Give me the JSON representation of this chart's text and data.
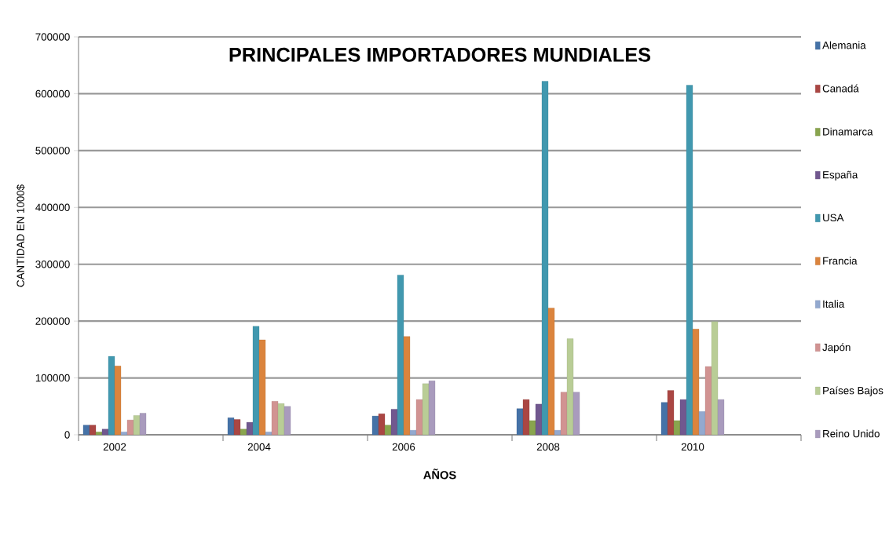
{
  "chart_data": {
    "type": "bar",
    "title": "PRINCIPALES IMPORTADORES MUNDIALES",
    "xlabel": "AÑOS",
    "ylabel": "CANTIDAD EN 1000$",
    "categories": [
      "2002",
      null,
      "2004",
      null,
      "2006",
      null,
      "2008",
      null,
      "2010",
      null
    ],
    "series": [
      {
        "name": "Alemania",
        "color": "#4572a7",
        "values": [
          17000,
          null,
          30000,
          null,
          33000,
          null,
          46000,
          null,
          57000,
          null
        ]
      },
      {
        "name": "Canadá",
        "color": "#aa4643",
        "values": [
          17000,
          null,
          27000,
          null,
          37000,
          null,
          62000,
          null,
          78000,
          null
        ]
      },
      {
        "name": "Dinamarca",
        "color": "#89a54e",
        "values": [
          5000,
          null,
          10000,
          null,
          17000,
          null,
          25000,
          null,
          25000,
          null
        ]
      },
      {
        "name": "España",
        "color": "#71588f",
        "values": [
          10000,
          null,
          22000,
          null,
          45000,
          null,
          54000,
          null,
          62000,
          null
        ]
      },
      {
        "name": "USA",
        "color": "#4198af",
        "values": [
          138000,
          null,
          191000,
          null,
          281000,
          null,
          622000,
          null,
          615000,
          null
        ]
      },
      {
        "name": "Francia",
        "color": "#db843d",
        "values": [
          121000,
          null,
          167000,
          null,
          173000,
          null,
          223000,
          null,
          186000,
          null
        ]
      },
      {
        "name": "Italia",
        "color": "#93a9cf",
        "values": [
          5000,
          null,
          5000,
          null,
          8000,
          null,
          8000,
          null,
          41000,
          null
        ]
      },
      {
        "name": "Japón",
        "color": "#d19392",
        "values": [
          26000,
          null,
          59000,
          null,
          62000,
          null,
          75000,
          null,
          120000,
          null
        ]
      },
      {
        "name": "Países Bajos",
        "color": "#b9cd96",
        "values": [
          34000,
          null,
          55000,
          null,
          90000,
          null,
          169000,
          null,
          199000,
          null
        ]
      },
      {
        "name": "Reino Unido",
        "color": "#a99bbd",
        "values": [
          38000,
          null,
          50000,
          null,
          95000,
          null,
          75000,
          null,
          62000,
          null
        ]
      }
    ],
    "ylim": [
      0,
      700000
    ],
    "yticks": [
      0,
      100000,
      200000,
      300000,
      400000,
      500000,
      600000,
      700000
    ],
    "grid": "y",
    "legend": "right"
  }
}
